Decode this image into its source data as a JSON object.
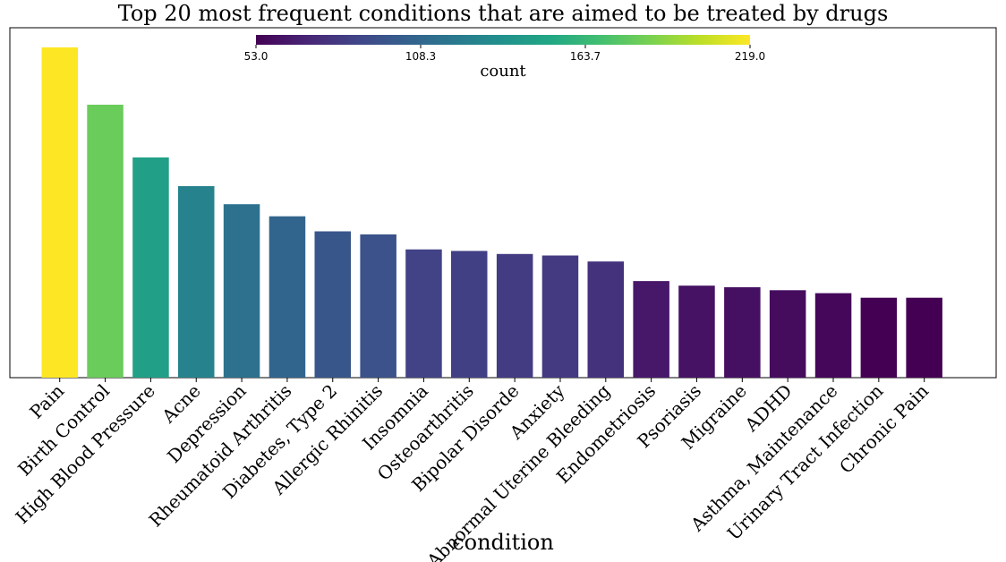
{
  "chart_data": {
    "type": "bar",
    "title": "Top 20 most frequent conditions that are aimed to be treated by drugs",
    "xlabel": "condition",
    "ylabel": "",
    "categories": [
      "Pain",
      "Birth Control",
      "High Blood Pressure",
      "Acne",
      "Depression",
      "Rheumatoid Arthritis",
      "Diabetes, Type 2",
      "Allergic Rhinitis",
      "Insomnia",
      "Osteoarthritis",
      "Bipolar Disorde",
      "Anxiety",
      "Abnormal Uterine Bleeding",
      "Endometriosis",
      "Psoriasis",
      "Migraine",
      "ADHD",
      "Asthma, Maintenance",
      "Urinary Tract Infection",
      "Chronic Pain"
    ],
    "values": [
      219,
      181,
      146,
      127,
      115,
      107,
      97,
      95,
      85,
      84,
      82,
      81,
      77,
      64,
      61,
      60,
      58,
      56,
      53,
      53
    ],
    "ylim": [
      0,
      232
    ],
    "y_ticks_visible": false,
    "grid": false,
    "colorbar": {
      "label": "count",
      "min": 53.0,
      "max": 219.0,
      "ticks": [
        "53.0",
        "108.3",
        "163.7",
        "219.0"
      ],
      "colormap": "viridis",
      "placement": "top-center"
    }
  }
}
